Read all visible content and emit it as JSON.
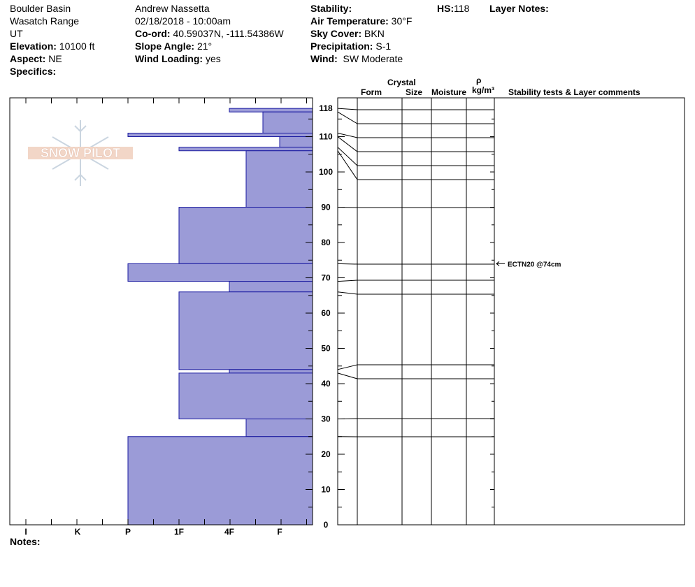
{
  "header": {
    "location": "Boulder Basin",
    "range": "Wasatch Range",
    "state": "UT",
    "elevation_label": "Elevation:",
    "elevation": "10100 ft",
    "aspect_label": "Aspect:",
    "aspect": "NE",
    "specifics_label": "Specifics:",
    "observer": "Andrew Nassetta",
    "datetime": "02/18/2018 - 10:00am",
    "coord_label": "Co-ord:",
    "coord": "40.59037N, -111.54386W",
    "slope_label": "Slope Angle:",
    "slope": "21°",
    "wind_loading_label": "Wind Loading:",
    "wind_loading": "yes",
    "stability_label": "Stability:",
    "air_temp_label": "Air Temperature:",
    "air_temp": "30°F",
    "sky_label": "Sky Cover:",
    "sky": "BKN",
    "precip_label": "Precipitation:",
    "precip": "S-1",
    "wind_label": "Wind:",
    "wind": "SW Moderate",
    "hs_label": "HS:",
    "hs": "118",
    "layer_notes_label": "Layer Notes:"
  },
  "columns": {
    "crystal": "Crystal",
    "form": "Form",
    "size": "Size",
    "moisture": "Moisture",
    "rho": "ρ",
    "density_unit": "kg/m³",
    "stability": "Stability tests & Layer comments"
  },
  "logo_text": "SNOW PILOT",
  "notes_label": "Notes:",
  "colors": {
    "hardness_fill": "#9b9bd7",
    "hardness_stroke": "#1a1aa0"
  },
  "chart_data": {
    "type": "bar",
    "orientation": "horizontal",
    "y_unit": "cm",
    "ylim": [
      0,
      121
    ],
    "y_ticks": [
      0,
      10,
      20,
      30,
      40,
      50,
      60,
      70,
      80,
      90,
      100,
      110,
      118
    ],
    "hardness_scale": [
      "I",
      "K",
      "P",
      "1F",
      "4F",
      "F"
    ],
    "hardness_index": {
      "F": 1,
      "4F": 2,
      "1F": 3,
      "P": 4,
      "K": 5,
      "I": 6
    },
    "layers": [
      {
        "top": 118,
        "bottom": 117,
        "hardness": "4F"
      },
      {
        "top": 117,
        "bottom": 111,
        "hardness": "F+"
      },
      {
        "top": 111,
        "bottom": 110,
        "hardness": "P"
      },
      {
        "top": 110,
        "bottom": 107,
        "hardness": "F"
      },
      {
        "top": 107,
        "bottom": 106,
        "hardness": "1F"
      },
      {
        "top": 106,
        "bottom": 90,
        "hardness": "4F-"
      },
      {
        "top": 90,
        "bottom": 74,
        "hardness": "1F"
      },
      {
        "top": 74,
        "bottom": 69,
        "hardness": "P"
      },
      {
        "top": 69,
        "bottom": 66,
        "hardness": "4F"
      },
      {
        "top": 66,
        "bottom": 44,
        "hardness": "1F"
      },
      {
        "top": 44,
        "bottom": 43,
        "hardness": "4F"
      },
      {
        "top": 43,
        "bottom": 30,
        "hardness": "1F"
      },
      {
        "top": 30,
        "bottom": 25,
        "hardness": "4F-"
      },
      {
        "top": 25,
        "bottom": 0,
        "hardness": "P"
      }
    ],
    "annotations": [
      {
        "depth": 74,
        "text": "ECTN20 @74cm"
      }
    ]
  }
}
